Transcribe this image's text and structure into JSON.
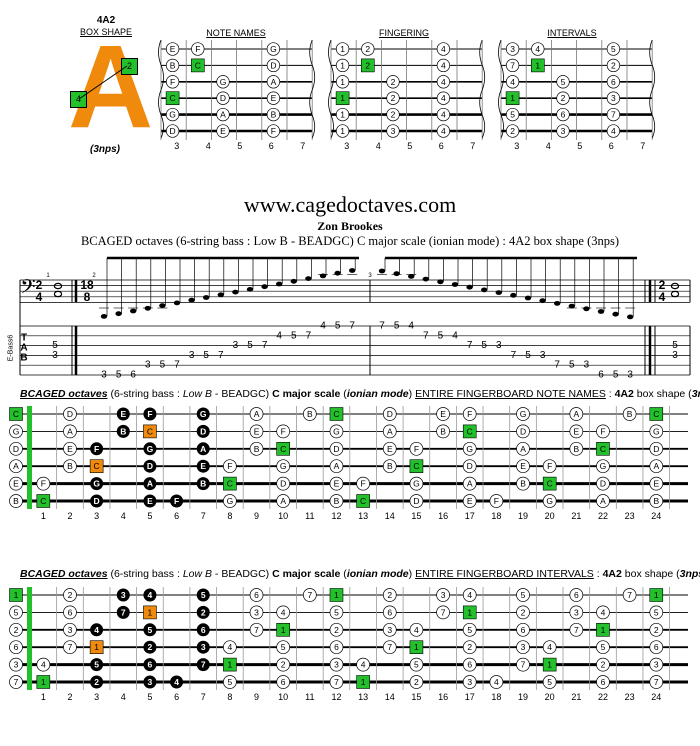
{
  "header": {
    "box_name": "4A2",
    "box_shape_label": "BOX SHAPE",
    "big_letter": "A",
    "nps": "3nps",
    "badge_left": "4",
    "badge_right": "2"
  },
  "mini_diagrams": [
    {
      "title": "NOTE NAMES",
      "strings": [
        [
          "E",
          "F",
          "",
          "G"
        ],
        [
          "B",
          "C",
          "",
          "D"
        ],
        [
          "F",
          "",
          "G",
          "A"
        ],
        [
          "C",
          "",
          "D",
          "E"
        ],
        [
          "G",
          "",
          "A",
          "B"
        ],
        [
          "D",
          "",
          "E",
          "F"
        ]
      ],
      "green": [
        [
          1,
          1
        ],
        [
          3,
          0
        ]
      ]
    },
    {
      "title": "FINGERING",
      "strings": [
        [
          "1",
          "2",
          "",
          "4"
        ],
        [
          "1",
          "2",
          "",
          "4"
        ],
        [
          "1",
          "",
          "2",
          "4"
        ],
        [
          "1",
          "",
          "2",
          "4"
        ],
        [
          "1",
          "",
          "2",
          "4"
        ],
        [
          "1",
          "",
          "3",
          "4"
        ]
      ],
      "green": [
        [
          1,
          1
        ],
        [
          3,
          0
        ]
      ]
    },
    {
      "title": "INTERVALS",
      "strings": [
        [
          "3",
          "4",
          "",
          "5"
        ],
        [
          "7",
          "1",
          "",
          "2"
        ],
        [
          "4",
          "",
          "5",
          "6"
        ],
        [
          "1",
          "",
          "2",
          "3"
        ],
        [
          "5",
          "",
          "6",
          "7"
        ],
        [
          "2",
          "",
          "3",
          "4"
        ]
      ],
      "green": [
        [
          1,
          1
        ],
        [
          3,
          0
        ]
      ]
    }
  ],
  "mini_frets": [
    "3",
    "4",
    "5",
    "6",
    "7"
  ],
  "site": "www.cagedoctaves.com",
  "author": "Zon Brookes",
  "description": "BCAGED octaves (6-string bass : Low B - BEADGC) C major scale (ionian mode) : 4A2 box shape (3nps)",
  "staff": {
    "clef_label": "E-Bass6",
    "time_sig_start": [
      "2",
      "4"
    ],
    "time_sig_mid": [
      "18",
      "8"
    ],
    "measure_numbers": [
      "1",
      "2",
      "3"
    ],
    "tab_letters": [
      "T",
      "A",
      "B"
    ],
    "tab_m1": [
      "5",
      "3"
    ],
    "tab_m2": [
      "3",
      "5",
      "6",
      "3",
      "5",
      "7",
      "3",
      "5",
      "7",
      "3",
      "5",
      "7",
      "4",
      "5",
      "7",
      "4",
      "5",
      "7"
    ],
    "tab_m3": [
      "7",
      "5",
      "4",
      "7",
      "5",
      "4",
      "7",
      "5",
      "3",
      "7",
      "5",
      "3",
      "7",
      "5",
      "3",
      "6",
      "5",
      "3"
    ],
    "tab_end": [
      "5",
      "3"
    ]
  },
  "board_notes": {
    "title": {
      "t1": "BCAGED octaves",
      "t2": " (6-string bass : ",
      "t3": "Low B",
      "t4": " - BEADGC) ",
      "t5": "C major scale",
      "t6": " (",
      "t7": "ionian mode",
      "t8": ") ",
      "t9": "ENTIRE FINGERBOARD NOTE NAMES",
      "t10": " : ",
      "t11": "4A2",
      "t12": " box shape (",
      "t13": "3nps",
      "t14": ")"
    },
    "open": [
      "C",
      "G",
      "D",
      "A",
      "E",
      "B"
    ],
    "rows": [
      {
        "F": "1",
        "G": "3",
        "A": "5",
        "B": "7",
        "C": "8",
        "D": "10",
        "E": "12",
        "F2": "13"
      },
      {
        "A": "2",
        "B": "4",
        "C": "5",
        "D": "7",
        "E": "9",
        "F": "10",
        "G": "12",
        "A2": "14"
      }
    ]
  },
  "board_intervals": {
    "title": {
      "t1": "BCAGED octaves",
      "t2": " (6-string bass : ",
      "t3": "Low B",
      "t4": " - BEADGC) ",
      "t5": "C major scale",
      "t6": " (",
      "t7": "ionian mode",
      "t8": ") ",
      "t9": "ENTIRE FINGERBOARD INTERVALS",
      "t10": " : ",
      "t11": "4A2",
      "t12": " box shape (",
      "t13": "3nps",
      "t14": ")"
    },
    "open": [
      "1",
      "5",
      "2",
      "6",
      "3",
      "7"
    ]
  },
  "fret_numbers": [
    "1",
    "2",
    "3",
    "4",
    "5",
    "6",
    "7",
    "8",
    "9",
    "10",
    "11",
    "12",
    "13",
    "14",
    "15",
    "16",
    "17",
    "18",
    "19",
    "20",
    "21",
    "22",
    "23",
    "24"
  ],
  "colors": {
    "green": "#22c02a",
    "orange": "#f08a0c",
    "black": "#000000"
  }
}
